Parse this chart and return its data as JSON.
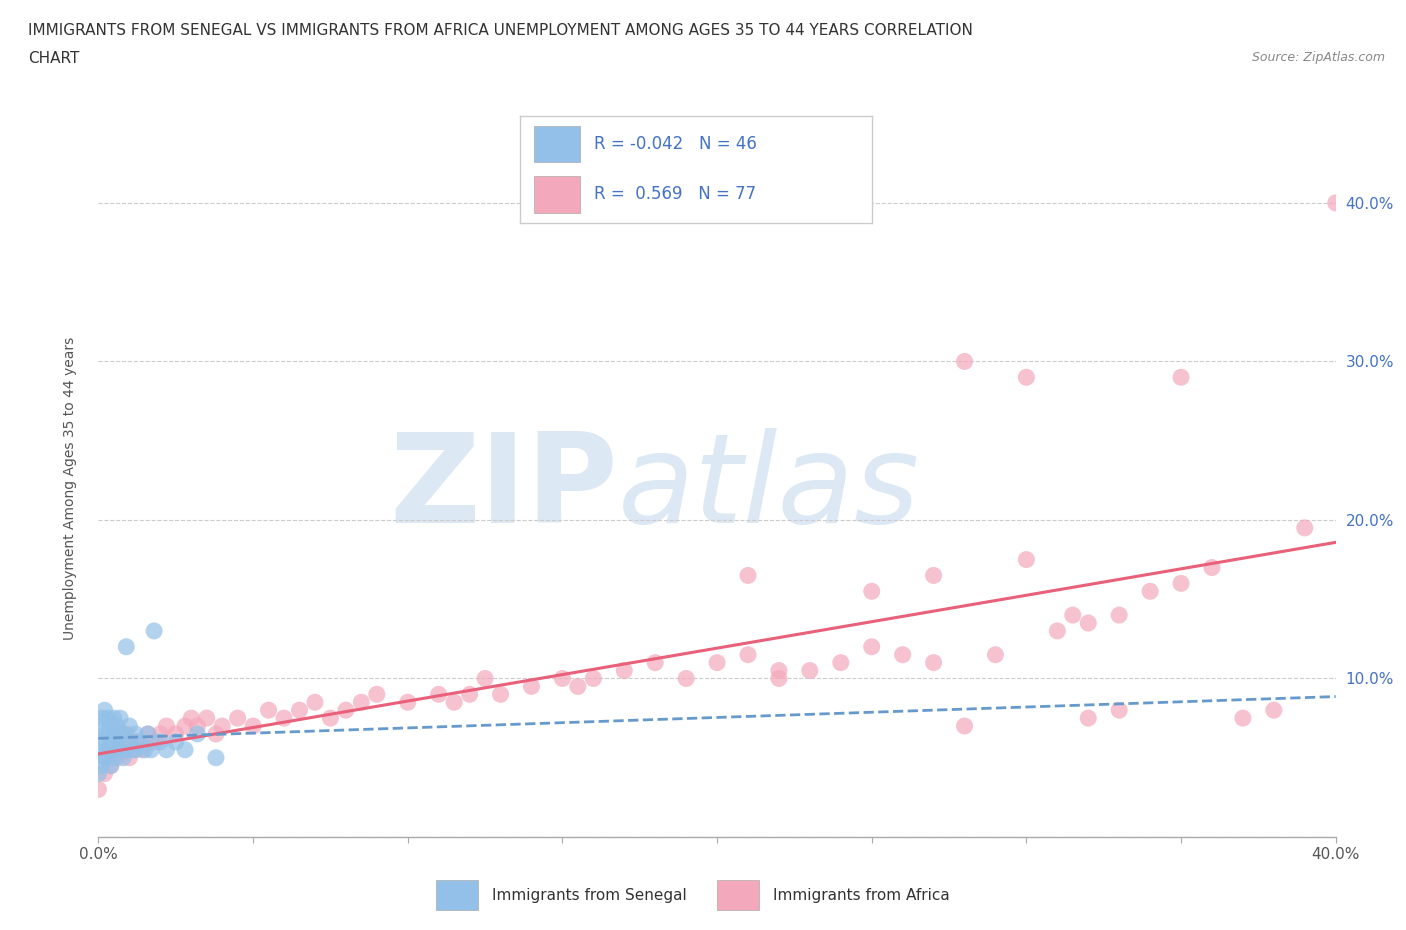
{
  "title_line1": "IMMIGRANTS FROM SENEGAL VS IMMIGRANTS FROM AFRICA UNEMPLOYMENT AMONG AGES 35 TO 44 YEARS CORRELATION",
  "title_line2": "CHART",
  "source_text": "Source: ZipAtlas.com",
  "ylabel": "Unemployment Among Ages 35 to 44 years",
  "xlabel_senegal": "Immigrants from Senegal",
  "xlabel_africa": "Immigrants from Africa",
  "xmin": 0.0,
  "xmax": 0.4,
  "ymin": 0.0,
  "ymax": 0.44,
  "yticks_right": [
    0.1,
    0.2,
    0.3,
    0.4
  ],
  "xticks_labeled": [
    0.0,
    0.4
  ],
  "xticks_minor": [
    0.05,
    0.1,
    0.15,
    0.2,
    0.25,
    0.3,
    0.35
  ],
  "r_senegal": -0.042,
  "n_senegal": 46,
  "r_africa": 0.569,
  "n_africa": 77,
  "color_senegal": "#92c0e8",
  "color_africa": "#f4a8bb",
  "color_line_senegal": "#6699cc",
  "color_line_africa": "#e8607a",
  "color_text_blue": "#4472c4",
  "watermark_text_1": "ZIP",
  "watermark_text_2": "atlas",
  "watermark_color": "#dde8f5",
  "background_color": "#ffffff",
  "grid_color": "#cccccc",
  "title_color": "#333333",
  "senegal_x": [
    0.0,
    0.0,
    0.0,
    0.001,
    0.001,
    0.001,
    0.002,
    0.002,
    0.002,
    0.002,
    0.003,
    0.003,
    0.003,
    0.003,
    0.004,
    0.004,
    0.004,
    0.005,
    0.005,
    0.005,
    0.005,
    0.006,
    0.006,
    0.007,
    0.007,
    0.007,
    0.008,
    0.008,
    0.009,
    0.009,
    0.01,
    0.01,
    0.011,
    0.012,
    0.012,
    0.013,
    0.015,
    0.016,
    0.017,
    0.018,
    0.02,
    0.022,
    0.025,
    0.028,
    0.032,
    0.038
  ],
  "senegal_y": [
    0.04,
    0.055,
    0.07,
    0.045,
    0.06,
    0.075,
    0.05,
    0.065,
    0.08,
    0.05,
    0.055,
    0.065,
    0.075,
    0.055,
    0.06,
    0.07,
    0.045,
    0.055,
    0.065,
    0.075,
    0.05,
    0.06,
    0.07,
    0.055,
    0.065,
    0.075,
    0.05,
    0.065,
    0.055,
    0.12,
    0.06,
    0.07,
    0.055,
    0.065,
    0.055,
    0.06,
    0.055,
    0.065,
    0.055,
    0.13,
    0.06,
    0.055,
    0.06,
    0.055,
    0.065,
    0.05
  ],
  "africa_x": [
    0.0,
    0.002,
    0.003,
    0.004,
    0.005,
    0.006,
    0.007,
    0.008,
    0.009,
    0.01,
    0.012,
    0.014,
    0.016,
    0.018,
    0.02,
    0.022,
    0.025,
    0.028,
    0.03,
    0.032,
    0.035,
    0.038,
    0.04,
    0.045,
    0.05,
    0.055,
    0.06,
    0.065,
    0.07,
    0.075,
    0.08,
    0.085,
    0.09,
    0.1,
    0.11,
    0.115,
    0.12,
    0.125,
    0.13,
    0.14,
    0.15,
    0.155,
    0.16,
    0.17,
    0.18,
    0.19,
    0.2,
    0.21,
    0.22,
    0.23,
    0.24,
    0.25,
    0.26,
    0.27,
    0.28,
    0.29,
    0.3,
    0.31,
    0.315,
    0.32,
    0.33,
    0.34,
    0.35,
    0.36,
    0.37,
    0.38,
    0.39,
    0.4,
    0.21,
    0.25,
    0.28,
    0.3,
    0.32,
    0.35,
    0.22,
    0.27,
    0.33
  ],
  "africa_y": [
    0.03,
    0.04,
    0.05,
    0.045,
    0.055,
    0.05,
    0.06,
    0.055,
    0.065,
    0.05,
    0.06,
    0.055,
    0.065,
    0.06,
    0.065,
    0.07,
    0.065,
    0.07,
    0.075,
    0.07,
    0.075,
    0.065,
    0.07,
    0.075,
    0.07,
    0.08,
    0.075,
    0.08,
    0.085,
    0.075,
    0.08,
    0.085,
    0.09,
    0.085,
    0.09,
    0.085,
    0.09,
    0.1,
    0.09,
    0.095,
    0.1,
    0.095,
    0.1,
    0.105,
    0.11,
    0.1,
    0.11,
    0.115,
    0.1,
    0.105,
    0.11,
    0.12,
    0.115,
    0.11,
    0.3,
    0.115,
    0.29,
    0.13,
    0.14,
    0.135,
    0.14,
    0.155,
    0.16,
    0.17,
    0.075,
    0.08,
    0.195,
    0.4,
    0.165,
    0.155,
    0.07,
    0.175,
    0.075,
    0.29,
    0.105,
    0.165,
    0.08
  ]
}
